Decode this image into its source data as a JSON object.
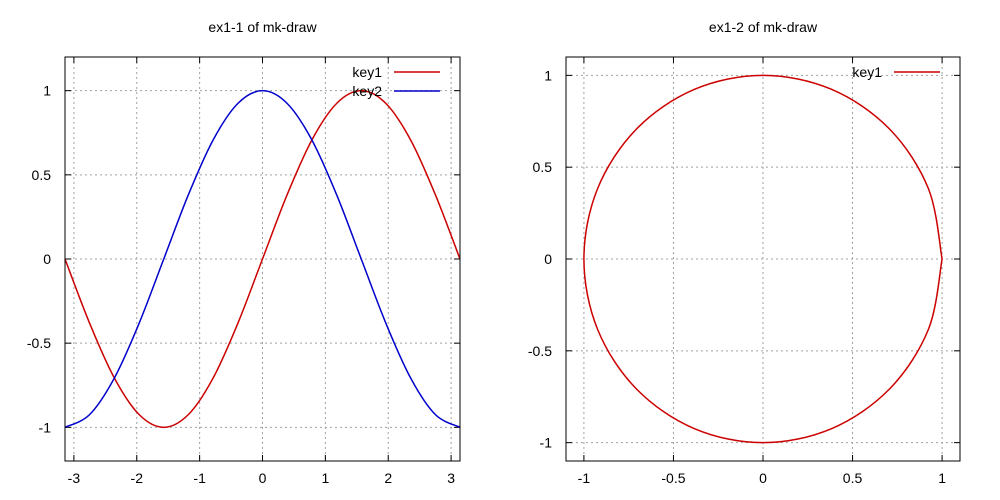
{
  "chart_data": [
    {
      "type": "line",
      "title": "ex1-1 of mk-draw",
      "xlabel": "",
      "ylabel": "",
      "xlim": [
        -3.14159,
        3.14159
      ],
      "ylim": [
        -1.2,
        1.2
      ],
      "xticks": [
        -3,
        -2,
        -1,
        0,
        1,
        2,
        3
      ],
      "yticks": [
        -1,
        -0.5,
        0,
        0.5,
        1
      ],
      "xtick_labels": [
        "-3",
        "-2",
        "-1",
        "0",
        "1",
        "2",
        "3"
      ],
      "ytick_labels": [
        "-1",
        "-0.5",
        "0",
        "0.5",
        "1"
      ],
      "grid": true,
      "legend": "top-right",
      "series": [
        {
          "name": "key1",
          "color": "#cc0000",
          "x": [
            -3.1416,
            -2.7489,
            -2.3562,
            -1.9635,
            -1.5708,
            -1.1781,
            -0.7854,
            -0.3927,
            0,
            0.3927,
            0.7854,
            1.1781,
            1.5708,
            1.9635,
            2.3562,
            2.7489,
            3.1416
          ],
          "y": [
            0,
            -0.3827,
            -0.7071,
            -0.9239,
            -1,
            -0.9239,
            -0.7071,
            -0.3827,
            0,
            0.3827,
            0.7071,
            0.9239,
            1,
            0.9239,
            0.7071,
            0.3827,
            0
          ]
        },
        {
          "name": "key2",
          "color": "#0000cc",
          "x": [
            -3.1416,
            -2.7489,
            -2.3562,
            -1.9635,
            -1.5708,
            -1.1781,
            -0.7854,
            -0.3927,
            0,
            0.3927,
            0.7854,
            1.1781,
            1.5708,
            1.9635,
            2.3562,
            2.7489,
            3.1416
          ],
          "y": [
            -1,
            -0.9239,
            -0.7071,
            -0.3827,
            0,
            0.3827,
            0.7071,
            0.9239,
            1,
            0.9239,
            0.7071,
            0.3827,
            0,
            -0.3827,
            -0.7071,
            -0.9239,
            -1
          ]
        }
      ]
    },
    {
      "type": "line",
      "title": "ex1-2 of mk-draw",
      "xlabel": "",
      "ylabel": "",
      "xlim": [
        -1.1,
        1.1
      ],
      "ylim": [
        -1.1,
        1.1
      ],
      "xticks": [
        -1,
        -0.5,
        0,
        0.5,
        1
      ],
      "yticks": [
        -1,
        -0.5,
        0,
        0.5,
        1
      ],
      "xtick_labels": [
        "-1",
        "-0.5",
        "0",
        "0.5",
        "1"
      ],
      "ytick_labels": [
        "-1",
        "-0.5",
        "0",
        "0.5",
        "1"
      ],
      "grid": true,
      "legend": "top-right",
      "series": [
        {
          "name": "key1",
          "color": "#cc0000",
          "x": [
            1,
            0.9239,
            0.7071,
            0.3827,
            0,
            -0.3827,
            -0.7071,
            -0.9239,
            -1,
            -0.9239,
            -0.7071,
            -0.3827,
            0,
            0.3827,
            0.7071,
            0.9239,
            1
          ],
          "y": [
            0,
            0.3827,
            0.7071,
            0.9239,
            1,
            0.9239,
            0.7071,
            0.3827,
            0,
            -0.3827,
            -0.7071,
            -0.9239,
            -1,
            -0.9239,
            -0.7071,
            -0.3827,
            0
          ]
        }
      ]
    }
  ]
}
